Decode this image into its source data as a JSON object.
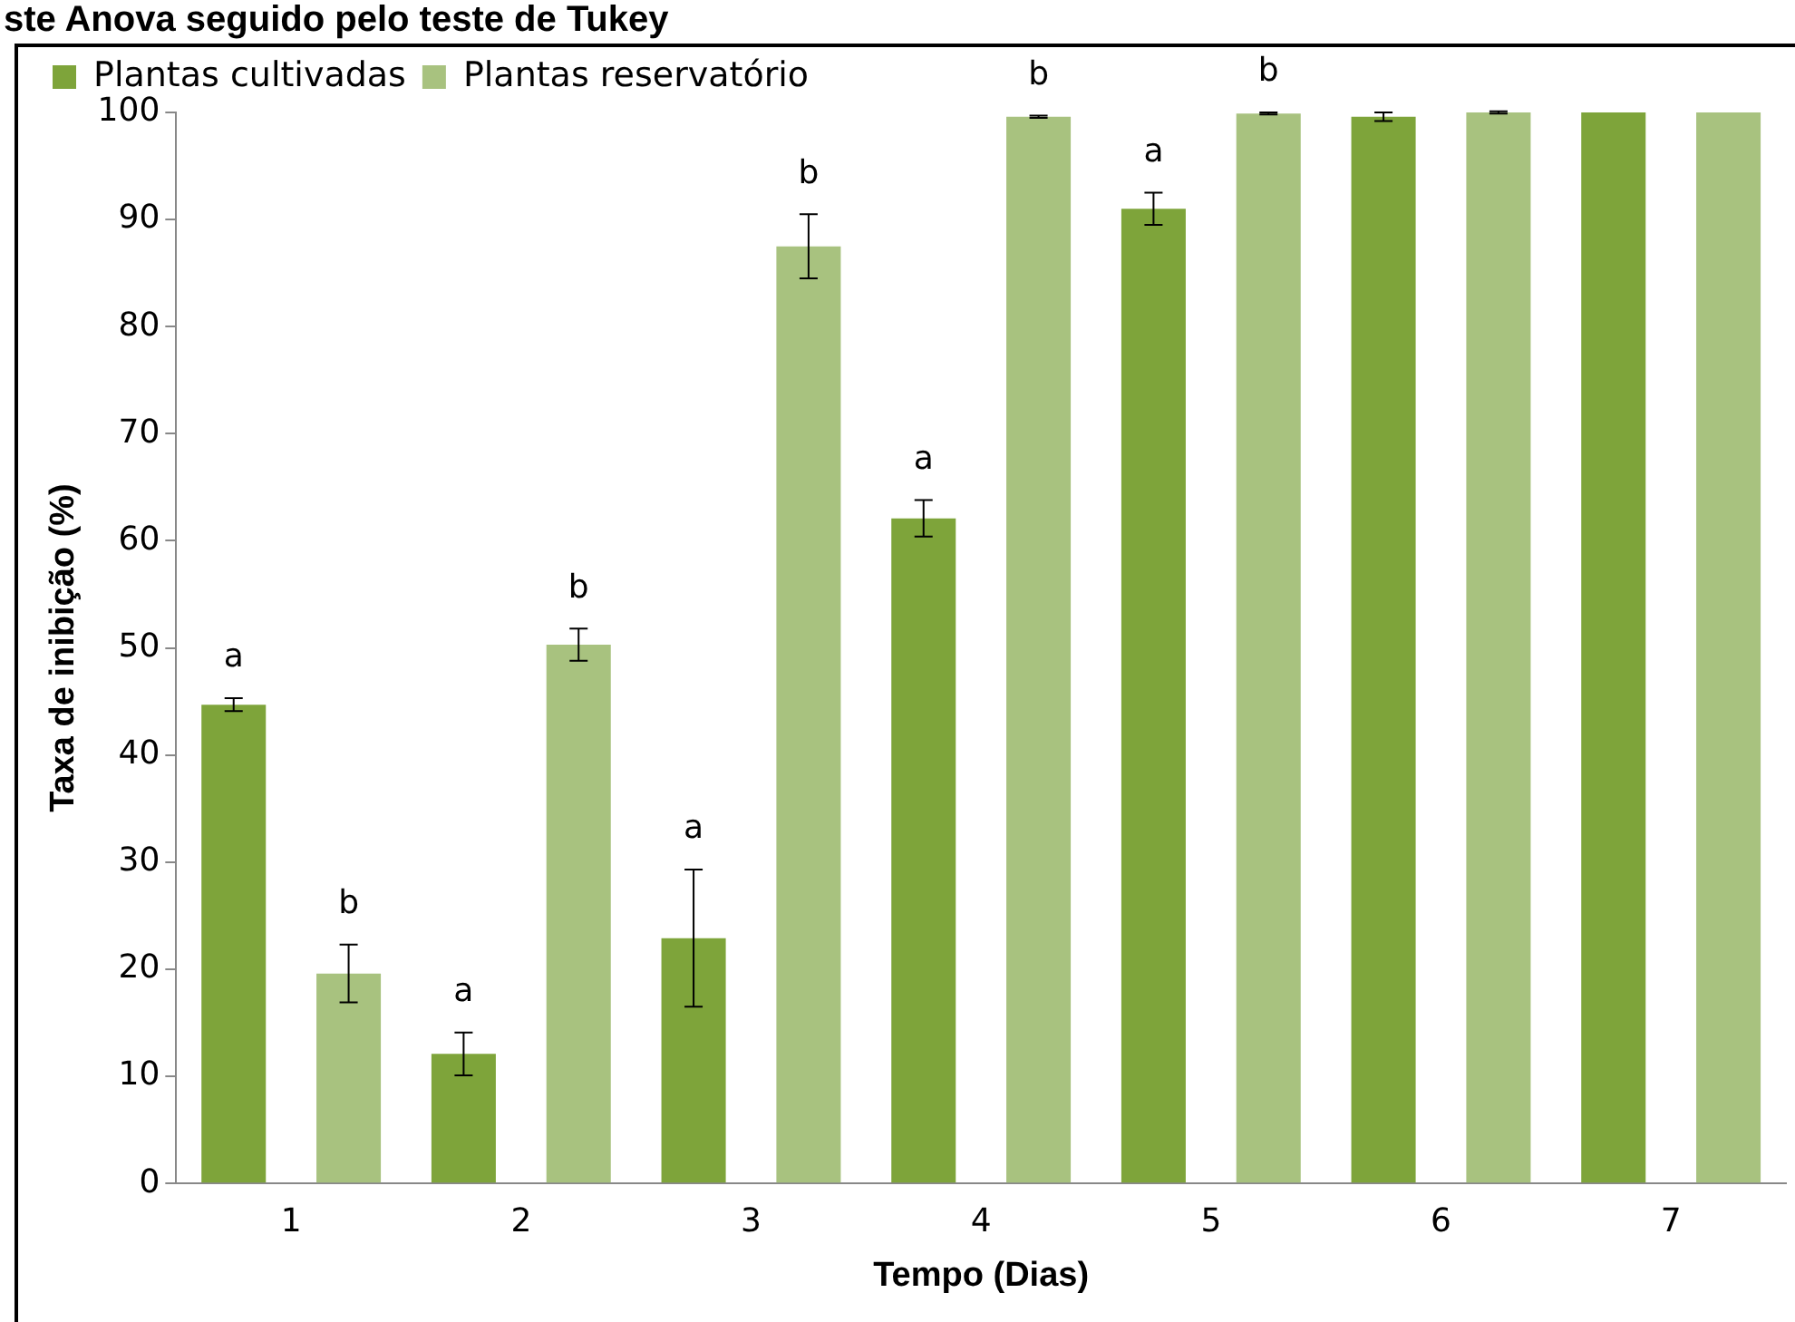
{
  "chart_data": {
    "type": "bar",
    "title": "ste Anova seguido pelo teste de Tukey",
    "xlabel": "Tempo (Dias)",
    "ylabel": "Taxa de inibição (%)",
    "categories": [
      "1",
      "2",
      "3",
      "4",
      "5",
      "6",
      "7"
    ],
    "series": [
      {
        "name": "Plantas cultivadas",
        "color": "#7ea43a",
        "values": [
          44.7,
          12.1,
          22.9,
          62.1,
          91,
          99.6,
          100
        ],
        "errors": [
          0.6,
          2,
          6.4,
          1.7,
          1.5,
          0.4,
          null
        ],
        "value_labels": [
          "a",
          "a",
          "a",
          "a",
          "a",
          null,
          null
        ]
      },
      {
        "name": "Plantas reservatório",
        "color": "#a8c27f",
        "values": [
          19.6,
          50.3,
          87.5,
          99.6,
          99.9,
          100,
          100
        ],
        "errors": [
          2.7,
          1.5,
          3,
          0.1,
          0.1,
          0.1,
          null
        ],
        "value_labels": [
          "b",
          "b",
          "b",
          "b",
          "b",
          null,
          null
        ]
      }
    ],
    "ylim": [
      0,
      100
    ],
    "yticks": [
      0,
      10,
      20,
      30,
      40,
      50,
      60,
      70,
      80,
      90,
      100
    ],
    "grid": false,
    "legend": "top left"
  }
}
